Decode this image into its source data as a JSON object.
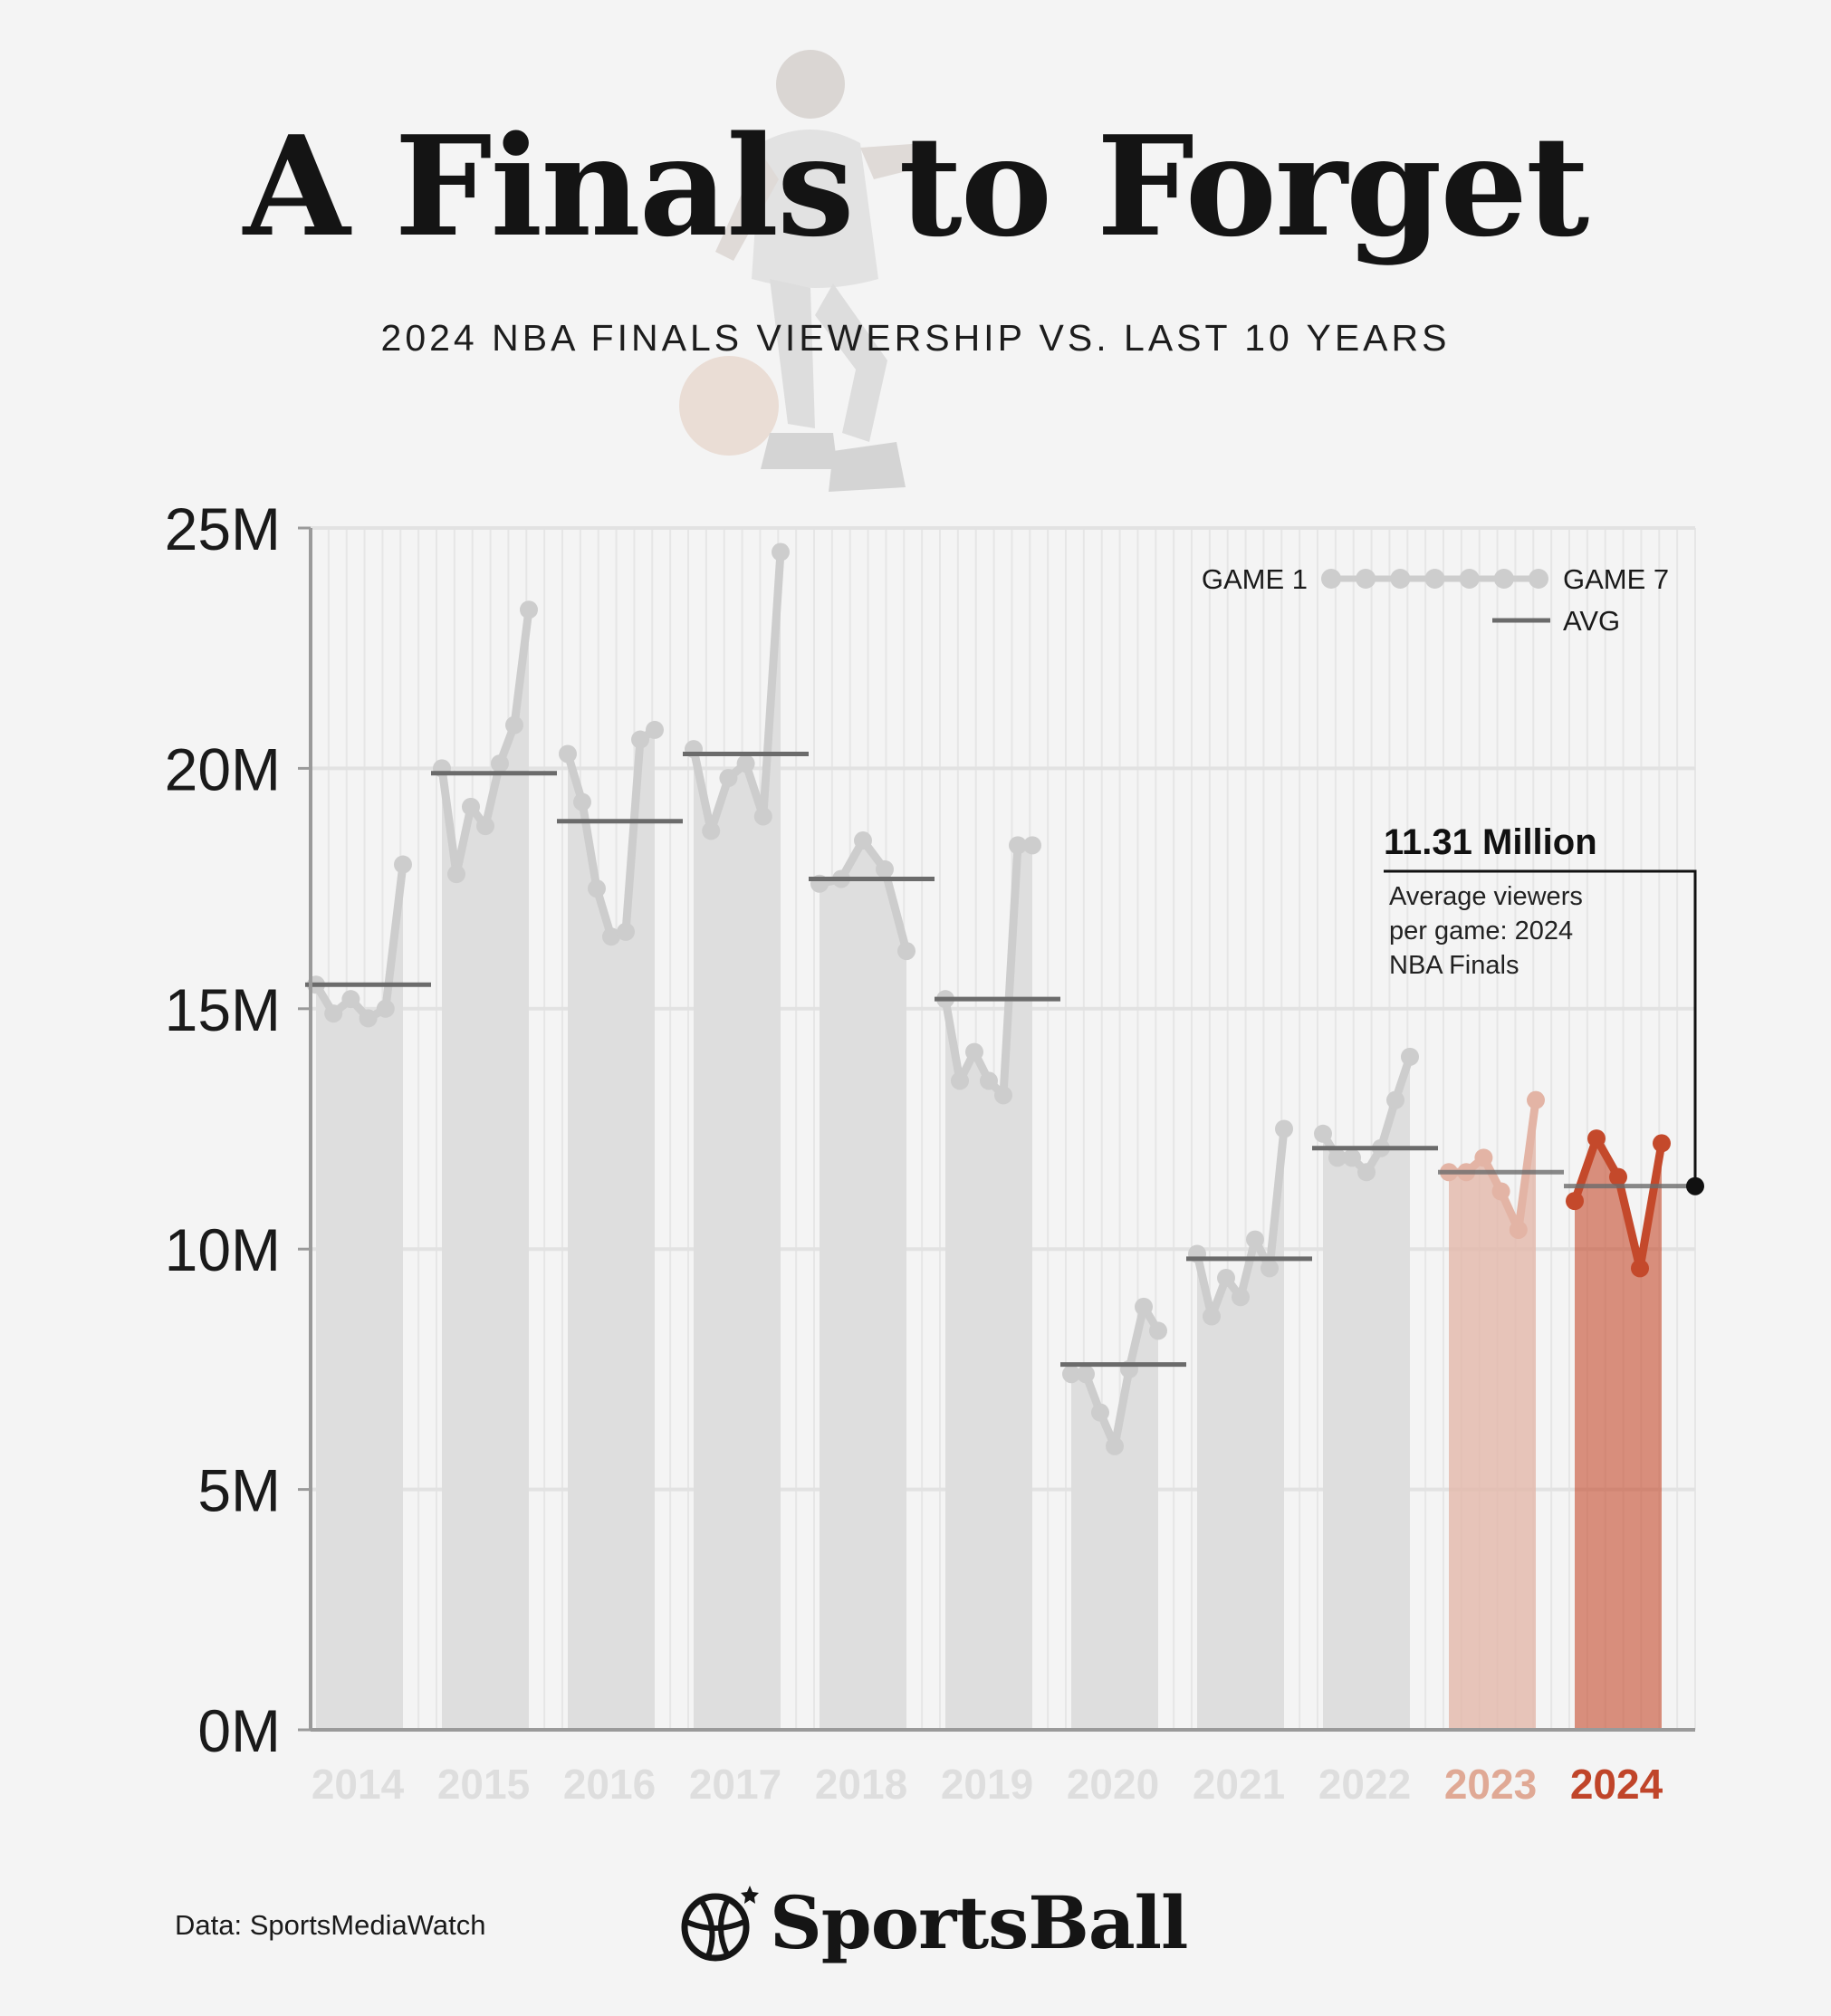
{
  "title": "A Finals to Forget",
  "subtitle": "2024 NBA FINALS VIEWERSHIP VS. LAST 10 YEARS",
  "source": "Data: SportsMediaWatch",
  "brand": "SportsBall",
  "colors": {
    "background": "#f4f4f4",
    "gray_bar": "#dedede",
    "gray_line": "#cdcdcd",
    "avg_line": "#6b6b6b",
    "highlight_2023": "#e3b4a5",
    "highlight_2024": "#c4492b",
    "label_2023": "#e0a995",
    "label_2024": "#c0452a",
    "label_gray": "#dedede"
  },
  "legend": {
    "first_label": "GAME 1",
    "last_label": "GAME 7",
    "avg_label": "AVG"
  },
  "callout": {
    "value": "11.31 Million",
    "line1": "Average viewers",
    "line2": "per game: 2024",
    "line3": "NBA Finals",
    "y": 11.31
  },
  "chart_data": {
    "type": "bar",
    "title": "A Finals to Forget",
    "subtitle": "2024 NBA FINALS VIEWERSHIP VS. LAST 10 YEARS",
    "units": "viewers (millions)",
    "y_tick_labels": [
      "0M",
      "5M",
      "10M",
      "15M",
      "20M",
      "25M"
    ],
    "ylim": [
      0,
      25
    ],
    "grid": true,
    "legend_position": "top-right",
    "categories": [
      "2014",
      "2015",
      "2016",
      "2017",
      "2018",
      "2019",
      "2020",
      "2021",
      "2022",
      "2023",
      "2024"
    ],
    "series": [
      {
        "name": "AVG",
        "values": [
          15.5,
          19.9,
          18.9,
          20.3,
          17.7,
          15.2,
          7.6,
          9.8,
          12.1,
          11.6,
          11.31
        ]
      }
    ],
    "games": [
      [
        15.5,
        14.9,
        15.2,
        14.8,
        15.0,
        18.0
      ],
      [
        20.0,
        17.8,
        19.2,
        18.8,
        20.1,
        20.9,
        23.3
      ],
      [
        20.3,
        19.3,
        17.5,
        16.5,
        16.6,
        20.6,
        20.8
      ],
      [
        20.4,
        18.7,
        19.8,
        20.1,
        19.0,
        24.5
      ],
      [
        17.6,
        17.7,
        18.5,
        17.9,
        16.2
      ],
      [
        15.2,
        13.5,
        14.1,
        13.5,
        13.2,
        18.4,
        18.4
      ],
      [
        7.4,
        7.4,
        6.6,
        5.9,
        7.5,
        8.8,
        8.3
      ],
      [
        9.9,
        8.6,
        9.4,
        9.0,
        10.2,
        9.6,
        12.5
      ],
      [
        12.4,
        11.9,
        11.9,
        11.6,
        12.1,
        13.1,
        14.0
      ],
      [
        11.6,
        11.6,
        11.9,
        11.2,
        10.4,
        13.1
      ],
      [
        11.0,
        12.3,
        11.5,
        9.6,
        12.2
      ]
    ]
  }
}
